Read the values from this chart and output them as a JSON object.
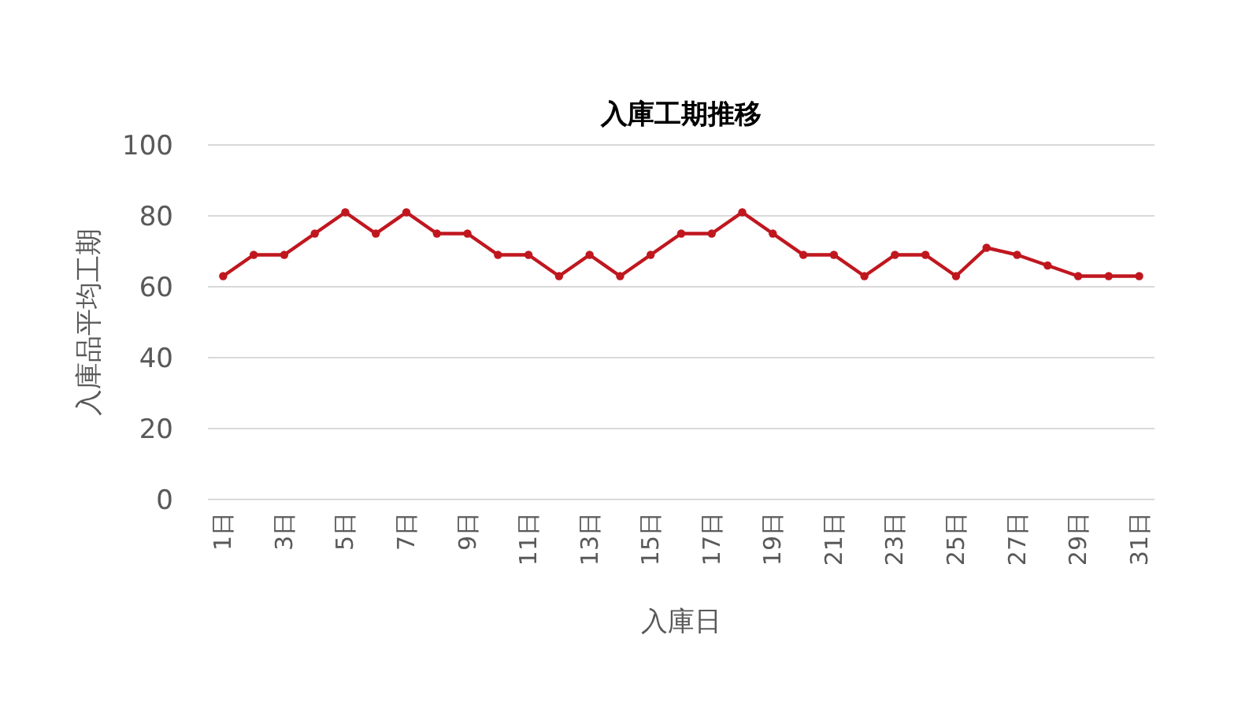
{
  "chart_data": {
    "type": "line",
    "title": "入庫工期推移",
    "xlabel": "入庫日",
    "ylabel": "入庫品平均工期",
    "categories": [
      "1日",
      null,
      "3日",
      null,
      "5日",
      null,
      "7日",
      null,
      "9日",
      null,
      "11日",
      null,
      "13日",
      null,
      "15日",
      null,
      "17日",
      null,
      "19日",
      null,
      "21日",
      null,
      "23日",
      null,
      "25日",
      null,
      "27日",
      null,
      "29日",
      null,
      "31日"
    ],
    "series": [
      {
        "color": "#c0171f",
        "values": [
          63,
          69,
          69,
          75,
          81,
          75,
          81,
          75,
          75,
          69,
          69,
          63,
          69,
          63,
          69,
          75,
          75,
          81,
          75,
          69,
          69,
          63,
          69,
          69,
          63,
          71,
          69,
          66,
          63,
          63,
          63
        ]
      }
    ],
    "ylim": [
      0,
      100
    ],
    "yticks": [
      0,
      20,
      40,
      60,
      80,
      100
    ],
    "grid": "y",
    "marker": "circle",
    "line_style": "solid"
  }
}
